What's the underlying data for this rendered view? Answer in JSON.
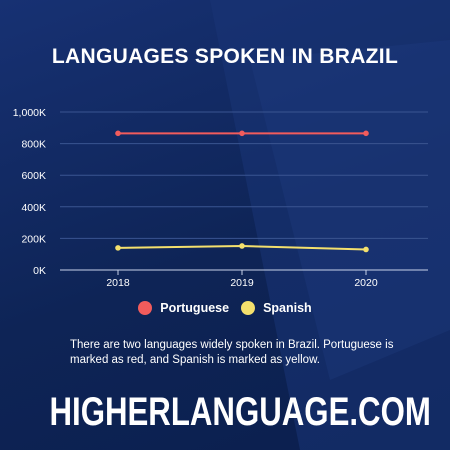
{
  "header": {
    "title": "LANGUAGES SPOKEN IN BRAZIL"
  },
  "colors": {
    "background": "#0f2556",
    "grid": "#3a5591",
    "axis": "#c9d3ea"
  },
  "chart_data": {
    "type": "line",
    "title": "LANGUAGES SPOKEN IN BRAZIL",
    "x": [
      "2018",
      "2019",
      "2020"
    ],
    "ylim": [
      0,
      1000000
    ],
    "yticks": [
      0,
      200000,
      400000,
      600000,
      800000,
      1000000
    ],
    "ytick_labels": [
      "0K",
      "200K",
      "400K",
      "600K",
      "800K",
      "1,000K"
    ],
    "grid": true,
    "legend_position": "bottom",
    "series": [
      {
        "name": "Portuguese",
        "color": "#f25c5c",
        "values": [
          865000,
          865000,
          865000
        ]
      },
      {
        "name": "Spanish",
        "color": "#f4e06d",
        "values": [
          140000,
          152000,
          130000
        ]
      }
    ]
  },
  "description": "There are two languages widely spoken in Brazil. Portuguese is marked as red, and Spanish is marked as yellow.",
  "footer": {
    "brand": "HIGHERLANGUAGE.COM"
  }
}
